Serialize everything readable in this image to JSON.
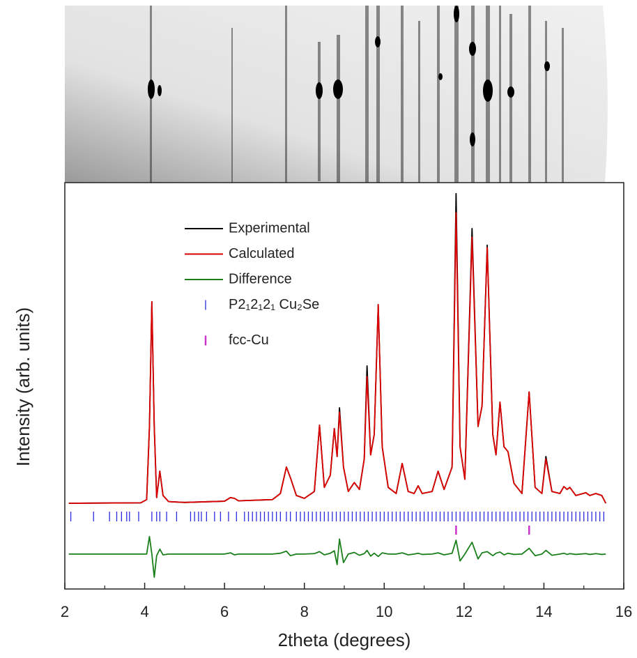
{
  "chart_data": {
    "type": "line",
    "x_label": "2theta (degrees)",
    "y_label": "Intensity (arb. units)",
    "xlim": [
      2,
      16
    ],
    "xticks": [
      2,
      4,
      6,
      8,
      10,
      12,
      14,
      16
    ],
    "xminorticks": [
      3,
      5,
      7,
      9,
      11,
      13,
      15
    ],
    "ylim": [
      0,
      100
    ],
    "x": [
      2.1,
      3.9,
      4.05,
      4.12,
      4.18,
      4.24,
      4.3,
      4.38,
      4.46,
      4.6,
      5.0,
      6.0,
      6.15,
      6.25,
      6.35,
      7.2,
      7.4,
      7.55,
      7.65,
      7.8,
      8.0,
      8.25,
      8.38,
      8.5,
      8.65,
      8.75,
      8.82,
      8.88,
      8.98,
      9.1,
      9.25,
      9.38,
      9.5,
      9.57,
      9.66,
      9.75,
      9.85,
      9.95,
      10.1,
      10.3,
      10.45,
      10.6,
      10.75,
      10.85,
      10.95,
      11.2,
      11.35,
      11.5,
      11.7,
      11.8,
      11.9,
      12.02,
      12.2,
      12.35,
      12.45,
      12.58,
      12.72,
      12.8,
      12.9,
      13.0,
      13.1,
      13.25,
      13.45,
      13.63,
      13.78,
      13.95,
      14.05,
      14.2,
      14.4,
      14.5,
      14.58,
      14.65,
      14.8,
      15.05,
      15.15,
      15.3,
      15.45,
      15.55
    ],
    "series": [
      {
        "name": "Experimental",
        "color": "#000000",
        "values": [
          21.1,
          21.2,
          22,
          40,
          70.7,
          40,
          22.5,
          29,
          23,
          21.5,
          21.3,
          21.6,
          22.5,
          22.3,
          21.7,
          22,
          23.5,
          30,
          27.4,
          23,
          22.3,
          24,
          40.3,
          25,
          28,
          39.5,
          32.6,
          44.6,
          30,
          24,
          26.2,
          24.5,
          32,
          54.9,
          33,
          38,
          70,
          35,
          25,
          23.5,
          30.9,
          24,
          23.5,
          25.4,
          23.5,
          24,
          29,
          24.5,
          30,
          97.3,
          35,
          27,
          88.7,
          40,
          45,
          84.6,
          38,
          33,
          46,
          35,
          33.8,
          26,
          23.5,
          48.5,
          25,
          23.5,
          32.6,
          24,
          23.5,
          25.2,
          24.5,
          25,
          23,
          23.7,
          23,
          23.5,
          23,
          21.1
        ]
      },
      {
        "name": "Calculated",
        "color": "#dd0000",
        "values": [
          21.1,
          21.2,
          22,
          40,
          70.7,
          40,
          22.5,
          29,
          23,
          21.5,
          21.3,
          21.6,
          22.5,
          22.3,
          21.7,
          22,
          23.5,
          30,
          27.4,
          23,
          22.3,
          24,
          40.3,
          25,
          28,
          39.5,
          32.6,
          43.5,
          30,
          24,
          26.2,
          24.5,
          32,
          52.3,
          33,
          38,
          70,
          35,
          25,
          23.5,
          30.9,
          24,
          23.5,
          25.4,
          23.5,
          24,
          29,
          24.5,
          30,
          92.6,
          35,
          27,
          86.6,
          40,
          45,
          84,
          38,
          33,
          46,
          35,
          33.8,
          26,
          23.5,
          48.5,
          25,
          23.5,
          32,
          24,
          23.5,
          25.2,
          24.5,
          25,
          23,
          23.7,
          23,
          23.5,
          23,
          21.1
        ]
      },
      {
        "name": "Difference",
        "color": "#1a7f1a",
        "values": [
          8.6,
          8.6,
          8.6,
          12.9,
          8.6,
          2.9,
          8.2,
          9.8,
          8.4,
          8.6,
          8.6,
          8.6,
          8.9,
          8.4,
          8.6,
          8.6,
          8.8,
          9.3,
          8.2,
          8.6,
          8.6,
          8.7,
          9.2,
          8.4,
          8.8,
          9.4,
          6,
          12.3,
          6.5,
          8.6,
          9,
          8.3,
          8.7,
          9.5,
          8.1,
          8.8,
          8,
          8.9,
          8.6,
          8.6,
          8.9,
          8.4,
          8.6,
          8.8,
          8.5,
          8.6,
          8.9,
          8.4,
          8.8,
          12,
          6.9,
          8.6,
          11.5,
          7.4,
          8.9,
          9.2,
          8.2,
          8.8,
          9.1,
          8.4,
          8.8,
          8.5,
          8.6,
          10,
          8.2,
          8.6,
          9.5,
          8.3,
          8.6,
          8.8,
          8.5,
          8.7,
          8.5,
          8.7,
          8.5,
          8.7,
          8.5,
          8.6
        ]
      }
    ],
    "reflections": [
      {
        "name": "P2₁2₁2₁ Cu₂Se",
        "color": "#2b2bdd",
        "positions": [
          2.15,
          2.72,
          3.12,
          3.3,
          3.42,
          3.55,
          3.62,
          3.85,
          4.18,
          4.3,
          4.38,
          4.55,
          4.8,
          5.15,
          5.25,
          5.35,
          5.42,
          5.55,
          5.75,
          5.9,
          6.1,
          6.3,
          6.5,
          6.6,
          6.7,
          6.8,
          6.9,
          7.0,
          7.1,
          7.2,
          7.3,
          7.4,
          7.55,
          7.65,
          7.8,
          7.9,
          8.0,
          8.1,
          8.2,
          8.3,
          8.4,
          8.5,
          8.6,
          8.7,
          8.8,
          8.9,
          9.0,
          9.1,
          9.2,
          9.3,
          9.4,
          9.5,
          9.6,
          9.7,
          9.8,
          9.9,
          10.0,
          10.1,
          10.2,
          10.3,
          10.4,
          10.5,
          10.6,
          10.7,
          10.8,
          10.9,
          11.0,
          11.1,
          11.2,
          11.3,
          11.4,
          11.5,
          11.6,
          11.7,
          11.8,
          11.9,
          12.0,
          12.1,
          12.2,
          12.3,
          12.4,
          12.5,
          12.6,
          12.7,
          12.8,
          12.9,
          13.0,
          13.1,
          13.2,
          13.3,
          13.4,
          13.5,
          13.6,
          13.7,
          13.8,
          13.9,
          14.0,
          14.1,
          14.2,
          14.3,
          14.4,
          14.5,
          14.6,
          14.7,
          14.8,
          14.9,
          15.0,
          15.1,
          15.2,
          15.3,
          15.4,
          15.5
        ]
      },
      {
        "name": "fcc-Cu",
        "color": "#cc33cc",
        "positions": [
          11.8,
          13.63
        ]
      }
    ]
  }
}
